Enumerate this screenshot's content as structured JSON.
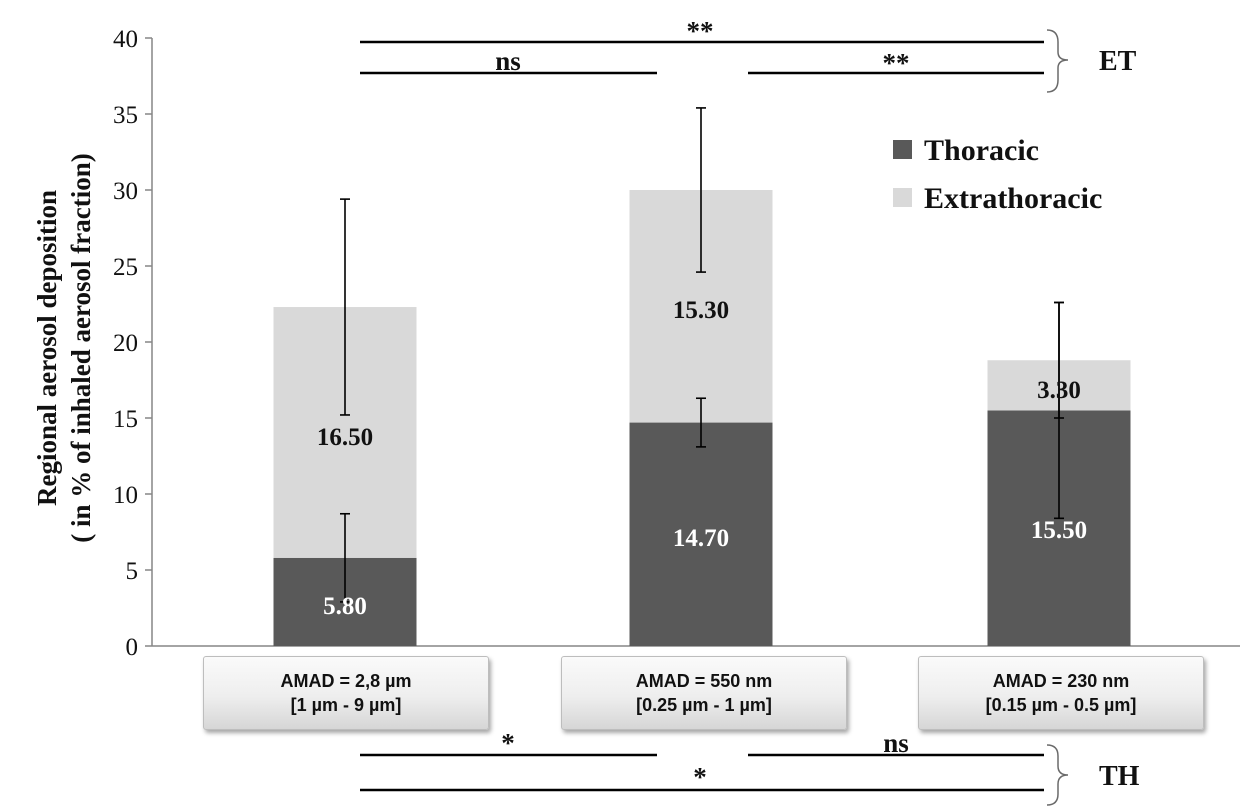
{
  "chart_data": {
    "type": "bar",
    "stacked": true,
    "categories": [
      {
        "line1": "AMAD = 2,8 µm",
        "line2": "[1 µm - 9 µm]"
      },
      {
        "line1": "AMAD = 550 nm",
        "line2": "[0.25 µm - 1 µm]"
      },
      {
        "line1": "AMAD = 230 nm",
        "line2": "[0.15 µm - 0.5 µm]"
      }
    ],
    "series": [
      {
        "name": "Thoracic",
        "color": "#595959",
        "values": [
          5.8,
          14.7,
          15.5
        ],
        "labels": [
          "5.80",
          "14.70",
          "15.50"
        ],
        "error": [
          2.9,
          1.6,
          7.1
        ]
      },
      {
        "name": "Extrathoracic",
        "color": "#d9d9d9",
        "values": [
          16.5,
          15.3,
          3.3
        ],
        "labels": [
          "16.50",
          "15.30",
          "3.30"
        ],
        "error": [
          7.1,
          5.4,
          3.8
        ]
      }
    ],
    "ylabel_line1": "Regional aerosol deposition",
    "ylabel_line2": "( in % of inhaled aerosol fraction)",
    "ylim": [
      0,
      40
    ],
    "yticks": [
      0,
      5,
      10,
      15,
      20,
      25,
      30,
      35,
      40
    ],
    "legend_position": "top-right",
    "grid": false,
    "significance": {
      "ET": {
        "label": "ET",
        "comparisons": [
          {
            "from": 0,
            "to": 2,
            "label": "**"
          },
          {
            "from": 0,
            "to": 1,
            "label": "ns"
          },
          {
            "from": 1,
            "to": 2,
            "label": "**"
          }
        ]
      },
      "TH": {
        "label": "TH",
        "comparisons": [
          {
            "from": 0,
            "to": 1,
            "label": "*"
          },
          {
            "from": 1,
            "to": 2,
            "label": "ns"
          },
          {
            "from": 0,
            "to": 2,
            "label": "*"
          }
        ]
      }
    }
  }
}
